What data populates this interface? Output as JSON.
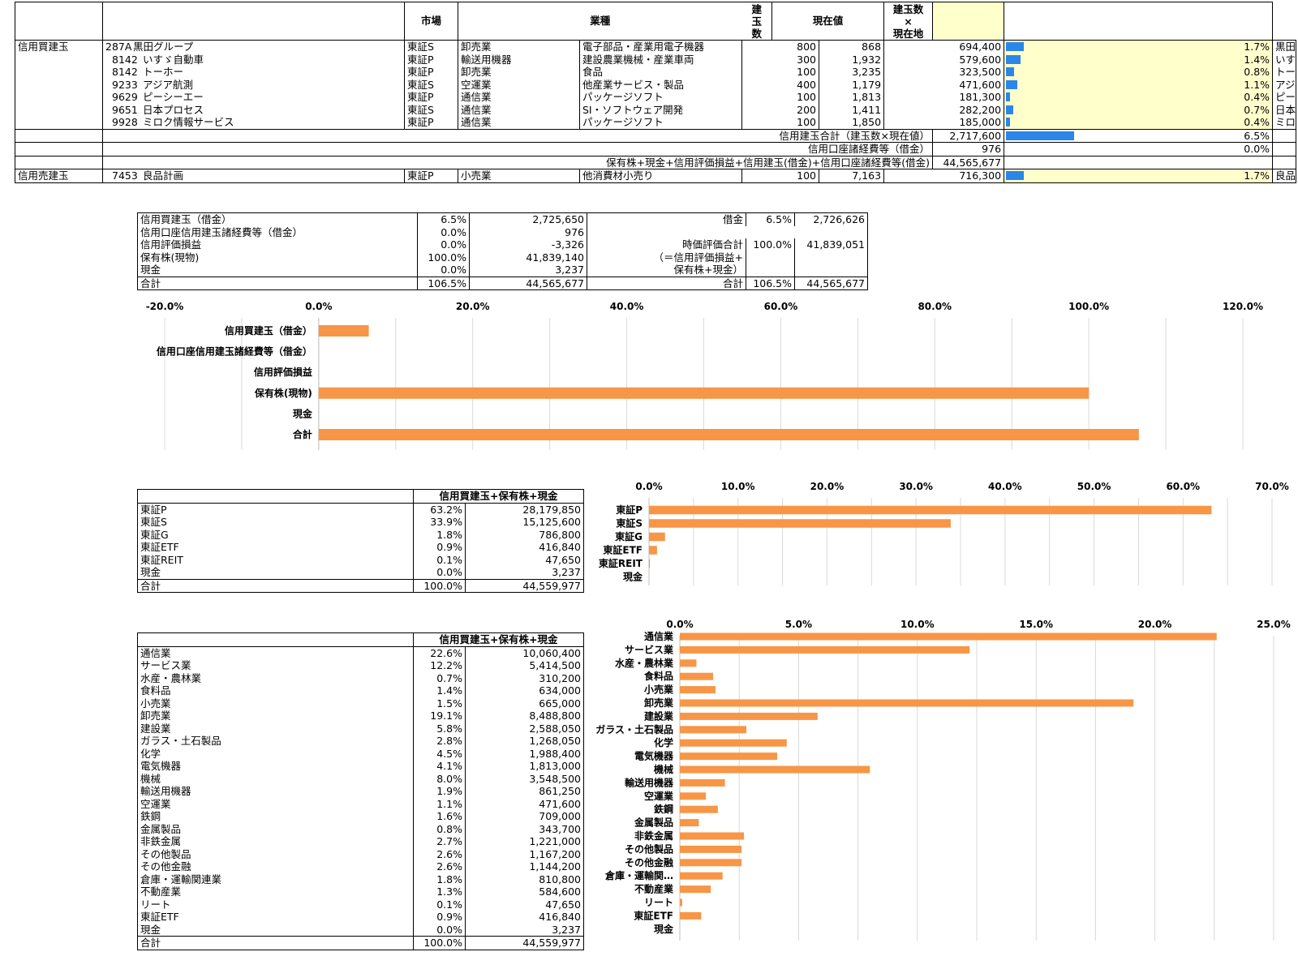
{
  "top_table": {
    "headers": {
      "market": "市場",
      "industry": "業種",
      "qty_l1": "建",
      "qty_l2": "玉",
      "qty_l3": "数",
      "price": "現在値",
      "value_l1": "建玉数",
      "value_l2": "×",
      "value_l3": "現在地"
    },
    "buy_section_label": "信用買建玉",
    "buy_rows": [
      {
        "code": "287A",
        "name": "黒田グループ",
        "market": "東証S",
        "ind1": "卸売業",
        "ind2": "電子部品・産業用電子機器",
        "qty": "800",
        "price": "868",
        "value": "694,400",
        "pct": "1.7%",
        "pct_val": 1.7,
        "label": "黒田グループ"
      },
      {
        "code": "8142",
        "name": "いすゞ自動車",
        "market": "東証P",
        "ind1": "輸送用機器",
        "ind2": "建設農業機械・産業車両",
        "qty": "300",
        "price": "1,932",
        "value": "579,600",
        "pct": "1.4%",
        "pct_val": 1.4,
        "label": "いすゞ自動車"
      },
      {
        "code": "8142",
        "name": "トーホー",
        "market": "東証P",
        "ind1": "卸売業",
        "ind2": "食品",
        "qty": "100",
        "price": "3,235",
        "value": "323,500",
        "pct": "0.8%",
        "pct_val": 0.8,
        "label": "トーホー"
      },
      {
        "code": "9233",
        "name": "アジア航測",
        "market": "東証S",
        "ind1": "空運業",
        "ind2": "他産業サービス・製品",
        "qty": "400",
        "price": "1,179",
        "value": "471,600",
        "pct": "1.1%",
        "pct_val": 1.1,
        "label": "アジア航測"
      },
      {
        "code": "9629",
        "name": "ピーシーエー",
        "market": "東証P",
        "ind1": "通信業",
        "ind2": "パッケージソフト",
        "qty": "100",
        "price": "1,813",
        "value": "181,300",
        "pct": "0.4%",
        "pct_val": 0.4,
        "label": "ピーシーエー"
      },
      {
        "code": "9651",
        "name": "日本プロセス",
        "market": "東証S",
        "ind1": "通信業",
        "ind2": "SI・ソフトウェア開発",
        "qty": "200",
        "price": "1,411",
        "value": "282,200",
        "pct": "0.7%",
        "pct_val": 0.7,
        "label": "日本プロセス"
      },
      {
        "code": "9928",
        "name": "ミロク情報サービス",
        "market": "東証P",
        "ind1": "通信業",
        "ind2": "パッケージソフト",
        "qty": "100",
        "price": "1,850",
        "value": "185,000",
        "pct": "0.4%",
        "pct_val": 0.4,
        "label": "ミロク情報サービス"
      }
    ],
    "total_label": "信用建玉合計（建玉数×現在値）",
    "total_value": "2,717,600",
    "total_pct": "6.5%",
    "total_pct_val": 6.5,
    "fee_label": "信用口座諸経費等（借金）",
    "fee_value": "976",
    "fee_pct": "0.0%",
    "grand_label": "保有株+現金+信用評価損益+信用建玉(借金)+信用口座諸経費等(借金)",
    "grand_value": "44,565,677",
    "sell_section_label": "信用売建玉",
    "sell_row": {
      "code": "7453",
      "name": "良品計画",
      "market": "東証P",
      "ind1": "小売業",
      "ind2": "他消費材小売り",
      "qty": "100",
      "price": "7,163",
      "value": "716,300",
      "pct": "1.7%",
      "pct_val": 1.7,
      "label": "良品計画"
    }
  },
  "summary": {
    "rows": [
      {
        "label": "信用買建玉（借金）",
        "pct": "6.5%",
        "value": "2,725,650"
      },
      {
        "label": "信用口座信用建玉諸経費等（借金）",
        "pct": "0.0%",
        "value": "976"
      },
      {
        "label": "信用評価損益",
        "pct": "0.0%",
        "value": "-3,326"
      },
      {
        "label": "保有株(現物)",
        "pct": "100.0%",
        "value": "41,839,140"
      },
      {
        "label": "現金",
        "pct": "0.0%",
        "value": "3,237"
      },
      {
        "label": "合計",
        "pct": "106.5%",
        "value": "44,565,677"
      }
    ],
    "right": {
      "debt_label": "借金",
      "debt_pct": "6.5%",
      "debt_value": "2,726,626",
      "mv_label_1": "時価評価合計",
      "mv_label_2": "（＝信用評価損益+",
      "mv_label_3": "保有株+現金）",
      "mv_pct": "100.0%",
      "mv_value": "41,839,051",
      "total_label": "合計",
      "total_pct": "106.5%",
      "total_value": "44,565,677"
    }
  },
  "market_table": {
    "header": "信用買建玉+保有株+現金",
    "rows": [
      {
        "label": "東証P",
        "pct": "63.2%",
        "value": "28,179,850"
      },
      {
        "label": "東証S",
        "pct": "33.9%",
        "value": "15,125,600"
      },
      {
        "label": "東証G",
        "pct": "1.8%",
        "value": "786,800"
      },
      {
        "label": "東証ETF",
        "pct": "0.9%",
        "value": "416,840"
      },
      {
        "label": "東証REIT",
        "pct": "0.1%",
        "value": "47,650"
      },
      {
        "label": "現金",
        "pct": "0.0%",
        "value": "3,237"
      }
    ],
    "total": {
      "label": "合計",
      "pct": "100.0%",
      "value": "44,559,977"
    }
  },
  "industry_table": {
    "header": "信用買建玉+保有株+現金",
    "rows": [
      {
        "label": "通信業",
        "pct": "22.6%",
        "value": "10,060,400"
      },
      {
        "label": "サービス業",
        "pct": "12.2%",
        "value": "5,414,500"
      },
      {
        "label": "水産・農林業",
        "pct": "0.7%",
        "value": "310,200"
      },
      {
        "label": "食料品",
        "pct": "1.4%",
        "value": "634,000"
      },
      {
        "label": "小売業",
        "pct": "1.5%",
        "value": "665,000"
      },
      {
        "label": "卸売業",
        "pct": "19.1%",
        "value": "8,488,800"
      },
      {
        "label": "建設業",
        "pct": "5.8%",
        "value": "2,588,050"
      },
      {
        "label": "ガラス・土石製品",
        "pct": "2.8%",
        "value": "1,268,050"
      },
      {
        "label": "化学",
        "pct": "4.5%",
        "value": "1,988,400"
      },
      {
        "label": "電気機器",
        "pct": "4.1%",
        "value": "1,813,000"
      },
      {
        "label": "機械",
        "pct": "8.0%",
        "value": "3,548,500"
      },
      {
        "label": "輸送用機器",
        "pct": "1.9%",
        "value": "861,250"
      },
      {
        "label": "空運業",
        "pct": "1.1%",
        "value": "471,600"
      },
      {
        "label": "鉄鋼",
        "pct": "1.6%",
        "value": "709,000"
      },
      {
        "label": "金属製品",
        "pct": "0.8%",
        "value": "343,700"
      },
      {
        "label": "非鉄金属",
        "pct": "2.7%",
        "value": "1,221,000"
      },
      {
        "label": "その他製品",
        "pct": "2.6%",
        "value": "1,167,200"
      },
      {
        "label": "その他金融",
        "pct": "2.6%",
        "value": "1,144,200"
      },
      {
        "label": "倉庫・運輸関連業",
        "pct": "1.8%",
        "value": "810,800"
      },
      {
        "label": "不動産業",
        "pct": "1.3%",
        "value": "584,600"
      },
      {
        "label": "リート",
        "pct": "0.1%",
        "value": "47,650"
      },
      {
        "label": "東証ETF",
        "pct": "0.9%",
        "value": "416,840"
      },
      {
        "label": "現金",
        "pct": "0.0%",
        "value": "3,237"
      }
    ],
    "total": {
      "label": "合計",
      "pct": "100.0%",
      "value": "44,559,977"
    }
  },
  "colors": {
    "bar": "#f79646",
    "databar": "#2b86e8",
    "highlight": "#ffffcc",
    "grid": "#d9d9d9"
  },
  "chart_data": [
    {
      "type": "bar",
      "orientation": "horizontal",
      "categories": [
        "信用買建玉（借金）",
        "信用口座信用建玉諸経費等（借金）",
        "信用評価損益",
        "保有株(現物)",
        "現金",
        "合計"
      ],
      "values": [
        6.5,
        0.0,
        0.0,
        100.0,
        0.0,
        106.5
      ],
      "xlim": [
        -20,
        120
      ],
      "ticks": [
        -20,
        0,
        20,
        40,
        60,
        80,
        100,
        120
      ],
      "tick_labels": [
        "-20.0%",
        "0.0%",
        "20.0%",
        "40.0%",
        "60.0%",
        "80.0%",
        "100.0%",
        "120.0%"
      ],
      "grid": true,
      "legend": "none"
    },
    {
      "type": "bar",
      "orientation": "horizontal",
      "categories": [
        "東証P",
        "東証S",
        "東証G",
        "東証ETF",
        "東証REIT",
        "現金"
      ],
      "values": [
        63.2,
        33.9,
        1.8,
        0.9,
        0.1,
        0.0
      ],
      "xlim": [
        0,
        70
      ],
      "ticks": [
        0,
        10,
        20,
        30,
        40,
        50,
        60,
        70
      ],
      "tick_labels": [
        "0.0%",
        "10.0%",
        "20.0%",
        "30.0%",
        "40.0%",
        "50.0%",
        "60.0%",
        "70.0%"
      ],
      "grid": true,
      "legend": "none"
    },
    {
      "type": "bar",
      "orientation": "horizontal",
      "categories": [
        "通信業",
        "サービス業",
        "水産・農林業",
        "食料品",
        "小売業",
        "卸売業",
        "建設業",
        "ガラス・土石製品",
        "化学",
        "電気機器",
        "機械",
        "輸送用機器",
        "空運業",
        "鉄鋼",
        "金属製品",
        "非鉄金属",
        "その他製品",
        "その他金融",
        "倉庫・運輸関…",
        "不動産業",
        "リート",
        "東証ETF",
        "現金"
      ],
      "values": [
        22.6,
        12.2,
        0.7,
        1.4,
        1.5,
        19.1,
        5.8,
        2.8,
        4.5,
        4.1,
        8.0,
        1.9,
        1.1,
        1.6,
        0.8,
        2.7,
        2.6,
        2.6,
        1.8,
        1.3,
        0.1,
        0.9,
        0.0
      ],
      "xlim": [
        0,
        25
      ],
      "ticks": [
        0,
        5,
        10,
        15,
        20,
        25
      ],
      "tick_labels": [
        "0.0%",
        "5.0%",
        "10.0%",
        "15.0%",
        "20.0%",
        "25.0%"
      ],
      "grid": true,
      "legend": "none"
    }
  ]
}
